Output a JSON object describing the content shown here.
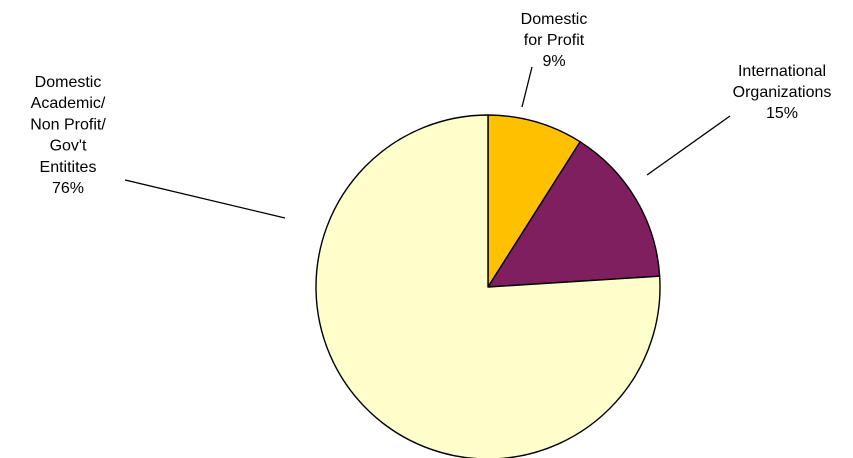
{
  "chart_data": {
    "type": "pie",
    "title": "",
    "slices": [
      {
        "name": "Domestic for Profit",
        "value": 9,
        "label_lines": [
          "Domestic",
          "for Profit",
          "9%"
        ],
        "color": "#FFC000"
      },
      {
        "name": "International Organizations",
        "value": 15,
        "label_lines": [
          "International",
          "Organizations",
          "15%"
        ],
        "color": "#7F1F5F"
      },
      {
        "name": "Domestic Academic/ Non Profit/ Gov't Entitites",
        "value": 76,
        "label_lines": [
          "Domestic",
          "Academic/",
          "Non Profit/",
          "Gov't",
          "Entitites",
          "76%"
        ],
        "color": "#FFFFCC"
      }
    ],
    "start_angle_deg": 0,
    "direction": "clockwise",
    "legend": "none",
    "data_labels": "outside-with-leader-lines"
  }
}
